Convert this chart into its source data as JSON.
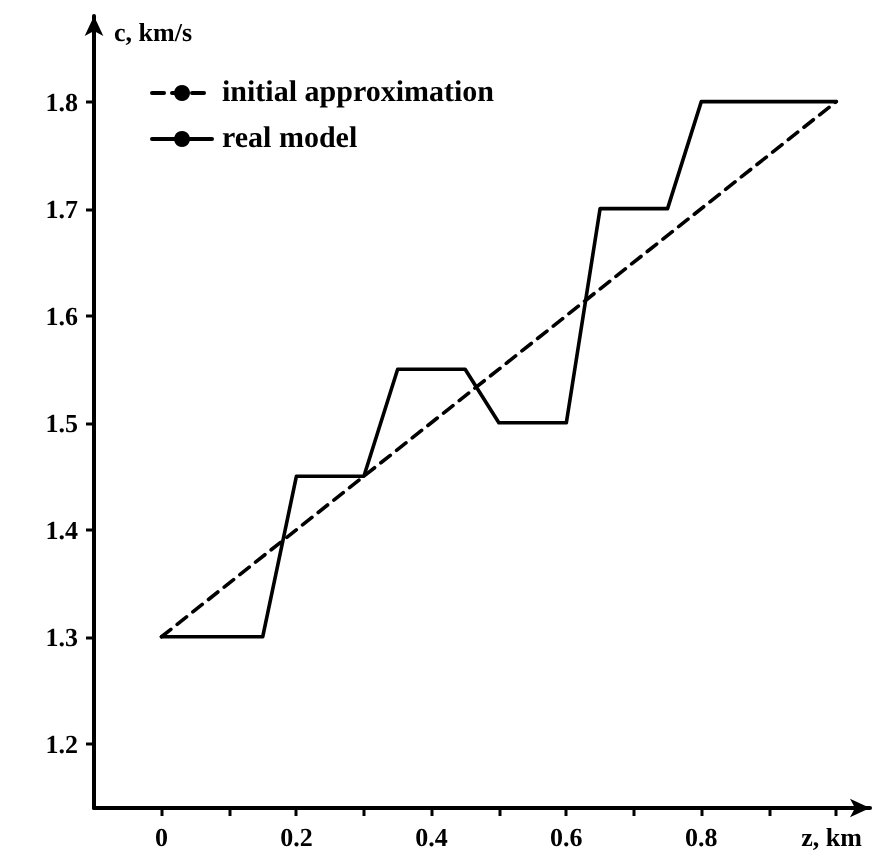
{
  "chart_data": {
    "type": "line",
    "xlabel": "z, km",
    "ylabel": "c, km/s",
    "xlim": [
      -0.1,
      1.05
    ],
    "ylim": [
      1.14,
      1.88
    ],
    "xticks": [
      0,
      {
        "value": 0.1,
        "label": null
      },
      {
        "value": 0.2,
        "label": "0.2"
      },
      {
        "value": 0.3,
        "label": null
      },
      {
        "value": 0.4,
        "label": "0.4"
      },
      {
        "value": 0.5,
        "label": null
      },
      {
        "value": 0.6,
        "label": "0.6"
      },
      {
        "value": 0.7,
        "label": null
      },
      {
        "value": 0.8,
        "label": "0.8"
      },
      {
        "value": 0.9,
        "label": null
      },
      {
        "value": 1.0,
        "label": null
      }
    ],
    "yticks": [
      {
        "value": 1.2,
        "label": "1.2"
      },
      {
        "value": 1.3,
        "label": "1.3"
      },
      {
        "value": 1.4,
        "label": "1.4"
      },
      {
        "value": 1.5,
        "label": "1.5"
      },
      {
        "value": 1.6,
        "label": "1.6"
      },
      {
        "value": 1.7,
        "label": "1.7"
      },
      {
        "value": 1.8,
        "label": "1.8"
      }
    ],
    "legend": "top left",
    "grid": false,
    "marker": "none",
    "series": [
      {
        "name": "initial approximation",
        "color": "#000000",
        "line_style": "dashed",
        "x": [
          0,
          1.0
        ],
        "values": [
          1.3,
          1.8
        ]
      },
      {
        "name": "real model",
        "color": "#000000",
        "line_style": "solid",
        "x": [
          0,
          0.15,
          0.2,
          0.3,
          0.35,
          0.45,
          0.5,
          0.6,
          0.65,
          0.75,
          0.8,
          1.0
        ],
        "values": [
          1.3,
          1.3,
          1.45,
          1.45,
          1.55,
          1.55,
          1.5,
          1.5,
          1.7,
          1.7,
          1.8,
          1.8
        ]
      }
    ]
  }
}
